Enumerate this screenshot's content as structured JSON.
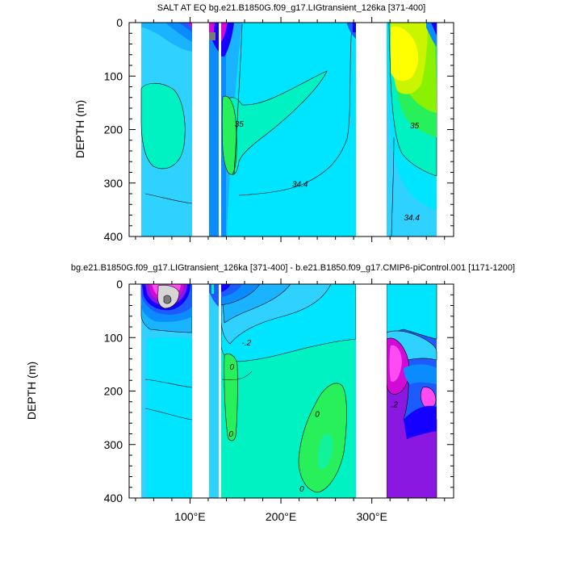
{
  "colors": {
    "background": "#ffffff",
    "land": "#ffffff",
    "cyan": "#00e5ff",
    "light_blue": "#2fd2ff",
    "sky_blue": "#19b3ff",
    "mid_blue": "#0a8cff",
    "blue": "#1c5cff",
    "navy": "#1500ff",
    "violet": "#8a18e0",
    "magenta": "#d10ad8",
    "pink": "#ff4bf2",
    "gray_light": "#d6d6d6",
    "gray_dark": "#7a7a7a",
    "teal": "#00f2c2",
    "aqua_green": "#12f29a",
    "green": "#27f05a",
    "lime": "#8af200",
    "yellow_green": "#c9f500",
    "yellow": "#ffff00",
    "contour_line": "#000000"
  },
  "chart_data": [
    {
      "type": "heatmap",
      "title": "SALT AT EQ bg.e21.B1850G.f09_g17.LIGtransient_126ka [371-400]",
      "xlabel": "",
      "ylabel": "DEPTH (m)",
      "xlim": [
        33,
        390
      ],
      "ylim": [
        400,
        0
      ],
      "yticks": [
        "0",
        "100",
        "200",
        "300",
        "400"
      ],
      "ytick_values": [
        0,
        100,
        200,
        300,
        400
      ],
      "xtick_values": [
        100,
        200,
        300
      ],
      "xticks_shown": false,
      "contour_labels": [
        {
          "text": "35",
          "lon": 154,
          "depth": 195
        },
        {
          "text": "35",
          "lon": 347,
          "depth": 198
        },
        {
          "text": "34.4",
          "lon": 221,
          "depth": 307
        },
        {
          "text": "34.4",
          "lon": 344,
          "depth": 370
        }
      ]
    },
    {
      "type": "heatmap",
      "title": "bg.e21.B1850G.f09_g17.LIGtransient_126ka [371-400] - b.e21.B1850.f09_g17.CMIP6-piControl.001 [1171-1200]",
      "xlabel": "",
      "ylabel": "DEPTH (m)",
      "xlim": [
        33,
        390
      ],
      "ylim": [
        400,
        0
      ],
      "yticks": [
        "0",
        "100",
        "200",
        "300",
        "400"
      ],
      "ytick_values": [
        0,
        100,
        200,
        300,
        400
      ],
      "xticks": [
        "100°E",
        "200°E",
        "300°E"
      ],
      "xtick_values": [
        100,
        200,
        300
      ],
      "contour_labels": [
        {
          "text": "-.2",
          "lon": 162,
          "depth": 115
        },
        {
          "text": "0",
          "lon": 146,
          "depth": 160
        },
        {
          "text": "0",
          "lon": 145,
          "depth": 285
        },
        {
          "text": "0",
          "lon": 240,
          "depth": 248
        },
        {
          "text": "0",
          "lon": 223,
          "depth": 388
        },
        {
          "text": ".2",
          "lon": 325,
          "depth": 230
        }
      ]
    }
  ]
}
